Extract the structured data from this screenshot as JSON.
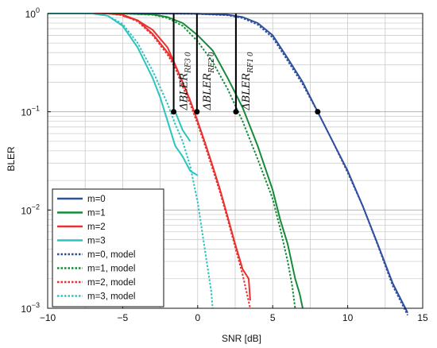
{
  "chart_data": {
    "type": "line",
    "title": "",
    "xlabel": "SNR [dB]",
    "ylabel": "BLER",
    "xlim": [
      -10,
      15
    ],
    "ylim": [
      0.001,
      1
    ],
    "yscale": "log",
    "grid": true,
    "legend_position": "bottom-left",
    "x_ticks": [
      -10,
      -5,
      0,
      5,
      10,
      15
    ],
    "x_tick_labels": [
      "−10",
      "−5",
      "0",
      "5",
      "10",
      "15"
    ],
    "y_ticks": [
      1,
      0.1,
      0.01,
      0.001
    ],
    "y_tick_labels": [
      {
        "base": "10",
        "exp": "0"
      },
      {
        "base": "10",
        "exp": "−1"
      },
      {
        "base": "10",
        "exp": "−2"
      },
      {
        "base": "10",
        "exp": "−3"
      }
    ],
    "series": [
      {
        "name": "m=0",
        "color": "#2e4f9e",
        "dash": "solid",
        "x": [
          -10,
          -3,
          0,
          2,
          3,
          4,
          5,
          6,
          7,
          8,
          9,
          10,
          11,
          12,
          13,
          14
        ],
        "y": [
          1,
          1,
          0.995,
          0.97,
          0.92,
          0.8,
          0.6,
          0.35,
          0.2,
          0.1,
          0.05,
          0.025,
          0.011,
          0.0045,
          0.0018,
          0.0009
        ]
      },
      {
        "name": "m=1",
        "color": "#178a39",
        "dash": "solid",
        "x": [
          -10,
          -5,
          -3,
          -2,
          -1,
          0,
          1,
          2,
          3,
          4,
          5,
          5.5,
          6,
          6.5,
          6.8,
          7.0
        ],
        "y": [
          1,
          1,
          0.98,
          0.92,
          0.8,
          0.6,
          0.42,
          0.22,
          0.11,
          0.045,
          0.016,
          0.008,
          0.0045,
          0.002,
          0.0014,
          0.001
        ]
      },
      {
        "name": "m=2",
        "color": "#e8312f",
        "dash": "solid",
        "x": [
          -10,
          -6,
          -5,
          -4,
          -3,
          -2,
          -1.5,
          -1,
          -0.5,
          0,
          0.5,
          1,
          1.5,
          2,
          2.5,
          3,
          3.4,
          3.5
        ],
        "y": [
          1,
          1,
          0.97,
          0.85,
          0.62,
          0.4,
          0.3,
          0.2,
          0.13,
          0.08,
          0.048,
          0.028,
          0.016,
          0.0085,
          0.0045,
          0.0025,
          0.002,
          0.0012
        ]
      },
      {
        "name": "m=3",
        "color": "#2cc4c0",
        "dash": "solid",
        "x": [
          -10,
          -7,
          -6,
          -5,
          -4,
          -3,
          -2.5,
          -2,
          -1.5,
          -1,
          -0.5,
          0
        ],
        "y": [
          1,
          1,
          0.95,
          0.75,
          0.45,
          0.22,
          0.14,
          0.08,
          0.045,
          0.035,
          0.025,
          0.0225
        ]
      },
      {
        "name": "m=0, model",
        "color": "#2e4f9e",
        "dash": "dotted",
        "x": [
          -10,
          -3,
          0,
          2,
          3,
          4,
          5,
          6,
          7,
          8,
          9,
          10,
          11,
          12,
          13,
          14
        ],
        "y": [
          1,
          1,
          0.99,
          0.96,
          0.9,
          0.77,
          0.57,
          0.33,
          0.19,
          0.1,
          0.05,
          0.024,
          0.011,
          0.0044,
          0.0017,
          0.00085
        ]
      },
      {
        "name": "m=1, model",
        "color": "#178a39",
        "dash": "dotted",
        "x": [
          -10,
          -5,
          -3,
          -2,
          -1,
          0,
          1,
          2,
          3,
          4,
          5,
          5.5,
          6,
          6.3,
          6.5
        ],
        "y": [
          1,
          1,
          0.97,
          0.9,
          0.75,
          0.52,
          0.32,
          0.17,
          0.08,
          0.033,
          0.013,
          0.0065,
          0.003,
          0.0017,
          0.001
        ]
      },
      {
        "name": "m=2, model",
        "color": "#e8312f",
        "dash": "dotted",
        "x": [
          -10,
          -6,
          -5,
          -4,
          -3,
          -2,
          -1.5,
          -1,
          -0.5,
          0,
          0.5,
          1,
          1.5,
          2,
          2.5,
          3,
          3.5
        ],
        "y": [
          1,
          1,
          0.96,
          0.83,
          0.6,
          0.38,
          0.28,
          0.18,
          0.12,
          0.075,
          0.045,
          0.026,
          0.015,
          0.008,
          0.0042,
          0.0022,
          0.001
        ]
      },
      {
        "name": "m=3, model",
        "color": "#2cc4c0",
        "dash": "dotted",
        "x": [
          -10,
          -7,
          -6,
          -5,
          -4,
          -3,
          -2,
          -1.5,
          -1,
          -0.5,
          0,
          0.3,
          0.6,
          0.9,
          1.0
        ],
        "y": [
          1,
          1,
          0.95,
          0.78,
          0.5,
          0.26,
          0.12,
          0.075,
          0.05,
          0.028,
          0.012,
          0.006,
          0.003,
          0.0015,
          0.001
        ]
      }
    ],
    "cut_segments": [
      {
        "series": "m=2",
        "x": [
          -5,
          -4,
          -3,
          -2,
          -1.5
        ],
        "y": [
          0.95,
          0.85,
          0.68,
          0.45,
          0.3
        ]
      },
      {
        "series": "m=3",
        "x": [
          -1.5,
          -1,
          -0.5
        ],
        "y": [
          0.1,
          0.065,
          0.05
        ]
      }
    ],
    "markers": [
      {
        "x": -1.6,
        "y": 0.1
      },
      {
        "x": -0.05,
        "y": 0.1
      },
      {
        "x": 2.55,
        "y": 0.1
      },
      {
        "x": 8.0,
        "y": 0.1
      }
    ],
    "delta_bars": [
      {
        "x": -1.6,
        "label_prefix": "ΔBLER",
        "sub": "RF3",
        "sub2": "0"
      },
      {
        "x": -0.05,
        "label_prefix": "ΔBLER",
        "sub": "RF2",
        "sub2": "0"
      },
      {
        "x": 2.55,
        "label_prefix": "ΔBLER",
        "sub": "RF1",
        "sub2": "0"
      }
    ]
  }
}
